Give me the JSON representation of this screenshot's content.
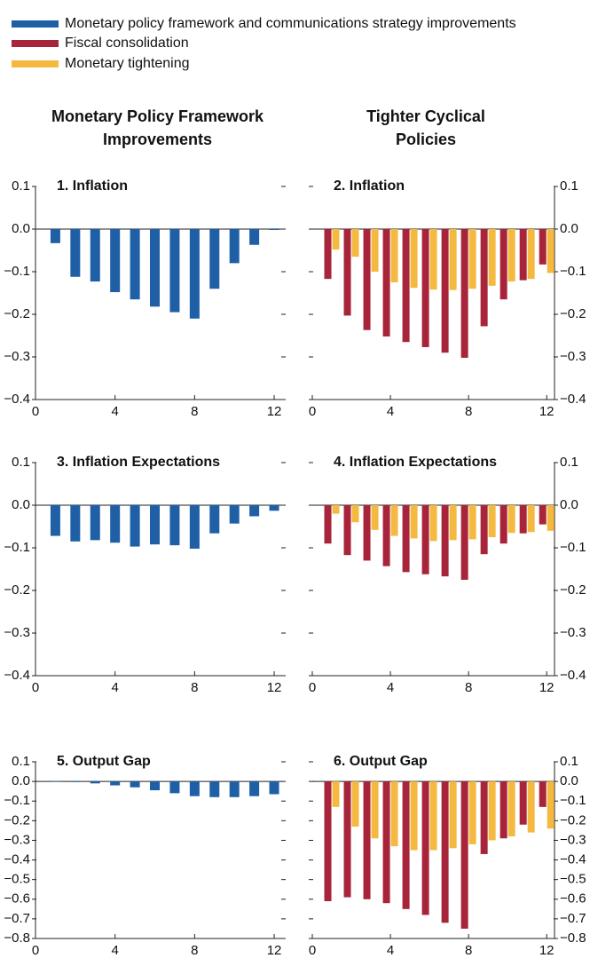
{
  "chart_data": [
    {
      "type": "bar",
      "column_title": "Monetary Policy Framework Improvements",
      "title": "1. Inflation",
      "x": [
        1,
        2,
        3,
        4,
        5,
        6,
        7,
        8,
        9,
        10,
        11,
        12
      ],
      "series": [
        {
          "name": "Monetary policy framework and communications strategy improvements",
          "color": "#1f5fa6",
          "values": [
            -0.033,
            -0.112,
            -0.123,
            -0.148,
            -0.165,
            -0.182,
            -0.195,
            -0.21,
            -0.14,
            -0.08,
            -0.037,
            -0.002
          ]
        }
      ],
      "xlim": [
        0,
        12.4
      ],
      "xticks": [
        0,
        4,
        8,
        12
      ],
      "ylim": [
        -0.4,
        0.1
      ],
      "yticks": [
        0.1,
        {
          "value": 0,
          "label": "0.0"
        },
        {
          "value": -0.1,
          "label": "−0.1"
        },
        {
          "value": -0.2,
          "label": "−0.2"
        },
        {
          "value": -0.3,
          "label": "−0.3"
        },
        {
          "value": -0.4,
          "label": "−0.4"
        }
      ],
      "y_axis_side": "left"
    },
    {
      "type": "bar",
      "column_title": "Tighter Cyclical Policies",
      "title": "2. Inflation",
      "x": [
        1,
        2,
        3,
        4,
        5,
        6,
        7,
        8,
        9,
        10,
        11,
        12
      ],
      "series": [
        {
          "name": "Fiscal consolidation",
          "color": "#a8243a",
          "values": [
            -0.117,
            -0.203,
            -0.237,
            -0.252,
            -0.265,
            -0.277,
            -0.29,
            -0.302,
            -0.228,
            -0.165,
            -0.12,
            -0.083
          ]
        },
        {
          "name": "Monetary tightening",
          "color": "#f4b940",
          "values": [
            -0.048,
            -0.065,
            -0.1,
            -0.125,
            -0.138,
            -0.142,
            -0.143,
            -0.14,
            -0.133,
            -0.123,
            -0.117,
            -0.103
          ]
        }
      ],
      "xlim": [
        0,
        12.4
      ],
      "xticks": [
        0,
        4,
        8,
        12
      ],
      "ylim": [
        -0.4,
        0.1
      ],
      "yticks": [
        0.1,
        {
          "value": 0,
          "label": "0.0"
        },
        {
          "value": -0.1,
          "label": "−0.1"
        },
        {
          "value": -0.2,
          "label": "−0.2"
        },
        {
          "value": -0.3,
          "label": "−0.3"
        },
        {
          "value": -0.4,
          "label": "−0.4"
        }
      ],
      "y_axis_side": "right"
    },
    {
      "type": "bar",
      "title": "3. Inflation Expectations",
      "x": [
        1,
        2,
        3,
        4,
        5,
        6,
        7,
        8,
        9,
        10,
        11,
        12
      ],
      "series": [
        {
          "color": "#1f5fa6",
          "values": [
            -0.072,
            -0.085,
            -0.082,
            -0.088,
            -0.097,
            -0.092,
            -0.094,
            -0.102,
            -0.066,
            -0.043,
            -0.026,
            -0.013
          ]
        }
      ],
      "xlim": [
        0,
        12.4
      ],
      "xticks": [
        0,
        4,
        8,
        12
      ],
      "ylim": [
        -0.4,
        0.1
      ],
      "yticks": [
        0.1,
        {
          "value": 0,
          "label": "0.0"
        },
        {
          "value": -0.1,
          "label": "−0.1"
        },
        {
          "value": -0.2,
          "label": "−0.2"
        },
        {
          "value": -0.3,
          "label": "−0.3"
        },
        {
          "value": -0.4,
          "label": "−0.4"
        }
      ],
      "y_axis_side": "left"
    },
    {
      "type": "bar",
      "title": "4. Inflation Expectations",
      "x": [
        1,
        2,
        3,
        4,
        5,
        6,
        7,
        8,
        9,
        10,
        11,
        12
      ],
      "series": [
        {
          "color": "#a8243a",
          "values": [
            -0.09,
            -0.117,
            -0.13,
            -0.143,
            -0.157,
            -0.162,
            -0.167,
            -0.175,
            -0.115,
            -0.09,
            -0.066,
            -0.045
          ]
        },
        {
          "color": "#f4b940",
          "values": [
            -0.02,
            -0.04,
            -0.058,
            -0.072,
            -0.078,
            -0.084,
            -0.082,
            -0.08,
            -0.075,
            -0.065,
            -0.063,
            -0.06
          ]
        }
      ],
      "xlim": [
        0,
        12.4
      ],
      "xticks": [
        0,
        4,
        8,
        12
      ],
      "ylim": [
        -0.4,
        0.1
      ],
      "yticks": [
        0.1,
        {
          "value": 0,
          "label": "0.0"
        },
        {
          "value": -0.1,
          "label": "−0.1"
        },
        {
          "value": -0.2,
          "label": "−0.2"
        },
        {
          "value": -0.3,
          "label": "−0.3"
        },
        {
          "value": -0.4,
          "label": "−0.4"
        }
      ],
      "y_axis_side": "right"
    },
    {
      "type": "bar",
      "title": "5. Output Gap",
      "x": [
        1,
        2,
        3,
        4,
        5,
        6,
        7,
        8,
        9,
        10,
        11,
        12
      ],
      "series": [
        {
          "color": "#1f5fa6",
          "values": [
            -0.002,
            -0.003,
            -0.01,
            -0.02,
            -0.03,
            -0.045,
            -0.06,
            -0.075,
            -0.08,
            -0.08,
            -0.075,
            -0.065
          ]
        }
      ],
      "xlim": [
        0,
        12.4
      ],
      "xticks": [
        0,
        4,
        8,
        12
      ],
      "ylim": [
        -0.8,
        0.1
      ],
      "yticks": [
        0.1,
        {
          "value": 0,
          "label": "0.0"
        },
        {
          "value": -0.1,
          "label": "−0.1"
        },
        {
          "value": -0.2,
          "label": "−0.2"
        },
        {
          "value": -0.3,
          "label": "−0.3"
        },
        {
          "value": -0.4,
          "label": "−0.4"
        },
        {
          "value": -0.5,
          "label": "−0.5"
        },
        {
          "value": -0.6,
          "label": "−0.6"
        },
        {
          "value": -0.7,
          "label": "−0.7"
        },
        {
          "value": -0.8,
          "label": "−0.8"
        }
      ],
      "y_axis_side": "left"
    },
    {
      "type": "bar",
      "title": "6. Output Gap",
      "x": [
        1,
        2,
        3,
        4,
        5,
        6,
        7,
        8,
        9,
        10,
        11,
        12
      ],
      "series": [
        {
          "color": "#a8243a",
          "values": [
            -0.61,
            -0.59,
            -0.6,
            -0.62,
            -0.65,
            -0.68,
            -0.72,
            -0.75,
            -0.37,
            -0.29,
            -0.22,
            -0.13
          ]
        },
        {
          "color": "#f4b940",
          "values": [
            -0.13,
            -0.23,
            -0.29,
            -0.33,
            -0.35,
            -0.35,
            -0.34,
            -0.32,
            -0.3,
            -0.28,
            -0.26,
            -0.24
          ]
        }
      ],
      "xlim": [
        0,
        12.4
      ],
      "xticks": [
        0,
        4,
        8,
        12
      ],
      "ylim": [
        -0.8,
        0.1
      ],
      "yticks": [
        0.1,
        {
          "value": 0,
          "label": "0.0"
        },
        {
          "value": -0.1,
          "label": "−0.1"
        },
        {
          "value": -0.2,
          "label": "−0.2"
        },
        {
          "value": -0.3,
          "label": "−0.3"
        },
        {
          "value": -0.4,
          "label": "−0.4"
        },
        {
          "value": -0.5,
          "label": "−0.5"
        },
        {
          "value": -0.6,
          "label": "−0.6"
        },
        {
          "value": -0.7,
          "label": "−0.7"
        },
        {
          "value": -0.8,
          "label": "−0.8"
        }
      ],
      "y_axis_side": "right"
    }
  ]
}
